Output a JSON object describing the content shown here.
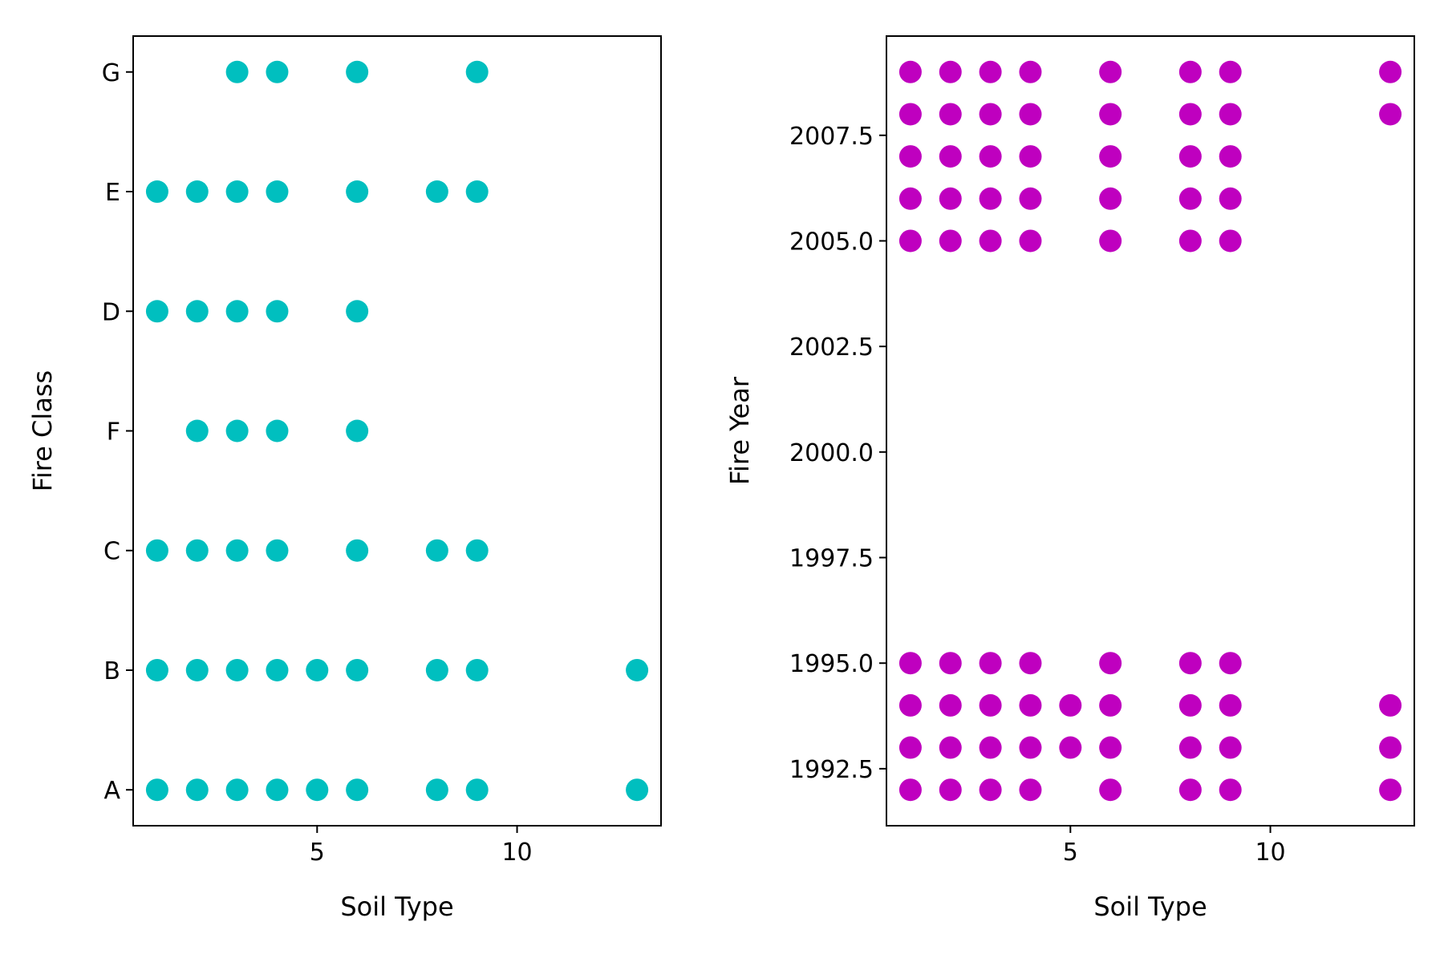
{
  "chart_data": [
    {
      "type": "scatter",
      "title": "",
      "xlabel": "Soil Type",
      "ylabel": "Fire Class",
      "xlim": [
        0.4,
        13.6
      ],
      "y_categories": [
        "A",
        "B",
        "C",
        "F",
        "D",
        "E",
        "G"
      ],
      "xticks": [
        5,
        10
      ],
      "grid": false,
      "color": "#00bfbf",
      "points": [
        {
          "x": 1,
          "y": "A"
        },
        {
          "x": 2,
          "y": "A"
        },
        {
          "x": 3,
          "y": "A"
        },
        {
          "x": 4,
          "y": "A"
        },
        {
          "x": 5,
          "y": "A"
        },
        {
          "x": 6,
          "y": "A"
        },
        {
          "x": 8,
          "y": "A"
        },
        {
          "x": 9,
          "y": "A"
        },
        {
          "x": 13,
          "y": "A"
        },
        {
          "x": 1,
          "y": "B"
        },
        {
          "x": 2,
          "y": "B"
        },
        {
          "x": 3,
          "y": "B"
        },
        {
          "x": 4,
          "y": "B"
        },
        {
          "x": 5,
          "y": "B"
        },
        {
          "x": 6,
          "y": "B"
        },
        {
          "x": 8,
          "y": "B"
        },
        {
          "x": 9,
          "y": "B"
        },
        {
          "x": 13,
          "y": "B"
        },
        {
          "x": 1,
          "y": "C"
        },
        {
          "x": 2,
          "y": "C"
        },
        {
          "x": 3,
          "y": "C"
        },
        {
          "x": 4,
          "y": "C"
        },
        {
          "x": 6,
          "y": "C"
        },
        {
          "x": 8,
          "y": "C"
        },
        {
          "x": 9,
          "y": "C"
        },
        {
          "x": 2,
          "y": "F"
        },
        {
          "x": 3,
          "y": "F"
        },
        {
          "x": 4,
          "y": "F"
        },
        {
          "x": 6,
          "y": "F"
        },
        {
          "x": 1,
          "y": "D"
        },
        {
          "x": 2,
          "y": "D"
        },
        {
          "x": 3,
          "y": "D"
        },
        {
          "x": 4,
          "y": "D"
        },
        {
          "x": 6,
          "y": "D"
        },
        {
          "x": 1,
          "y": "E"
        },
        {
          "x": 2,
          "y": "E"
        },
        {
          "x": 3,
          "y": "E"
        },
        {
          "x": 4,
          "y": "E"
        },
        {
          "x": 6,
          "y": "E"
        },
        {
          "x": 8,
          "y": "E"
        },
        {
          "x": 9,
          "y": "E"
        },
        {
          "x": 3,
          "y": "G"
        },
        {
          "x": 4,
          "y": "G"
        },
        {
          "x": 6,
          "y": "G"
        },
        {
          "x": 9,
          "y": "G"
        }
      ]
    },
    {
      "type": "scatter",
      "title": "",
      "xlabel": "Soil Type",
      "ylabel": "Fire Year",
      "xlim": [
        0.4,
        13.6
      ],
      "ylim": [
        1991.15,
        2009.85
      ],
      "xticks": [
        5,
        10
      ],
      "yticks": [
        1992.5,
        1995.0,
        1997.5,
        2000.0,
        2002.5,
        2005.0,
        2007.5
      ],
      "ytick_labels": [
        "1992.5",
        "1995.0",
        "1997.5",
        "2000.0",
        "2002.5",
        "2005.0",
        "2007.5"
      ],
      "grid": false,
      "color": "#bf00bf",
      "points": [
        {
          "x": 1,
          "y": 1992
        },
        {
          "x": 2,
          "y": 1992
        },
        {
          "x": 3,
          "y": 1992
        },
        {
          "x": 4,
          "y": 1992
        },
        {
          "x": 6,
          "y": 1992
        },
        {
          "x": 8,
          "y": 1992
        },
        {
          "x": 9,
          "y": 1992
        },
        {
          "x": 13,
          "y": 1992
        },
        {
          "x": 1,
          "y": 1993
        },
        {
          "x": 2,
          "y": 1993
        },
        {
          "x": 3,
          "y": 1993
        },
        {
          "x": 4,
          "y": 1993
        },
        {
          "x": 5,
          "y": 1993
        },
        {
          "x": 6,
          "y": 1993
        },
        {
          "x": 8,
          "y": 1993
        },
        {
          "x": 9,
          "y": 1993
        },
        {
          "x": 13,
          "y": 1993
        },
        {
          "x": 1,
          "y": 1994
        },
        {
          "x": 2,
          "y": 1994
        },
        {
          "x": 3,
          "y": 1994
        },
        {
          "x": 4,
          "y": 1994
        },
        {
          "x": 5,
          "y": 1994
        },
        {
          "x": 6,
          "y": 1994
        },
        {
          "x": 8,
          "y": 1994
        },
        {
          "x": 9,
          "y": 1994
        },
        {
          "x": 13,
          "y": 1994
        },
        {
          "x": 1,
          "y": 1995
        },
        {
          "x": 2,
          "y": 1995
        },
        {
          "x": 3,
          "y": 1995
        },
        {
          "x": 4,
          "y": 1995
        },
        {
          "x": 6,
          "y": 1995
        },
        {
          "x": 8,
          "y": 1995
        },
        {
          "x": 9,
          "y": 1995
        },
        {
          "x": 1,
          "y": 2005
        },
        {
          "x": 2,
          "y": 2005
        },
        {
          "x": 3,
          "y": 2005
        },
        {
          "x": 4,
          "y": 2005
        },
        {
          "x": 6,
          "y": 2005
        },
        {
          "x": 8,
          "y": 2005
        },
        {
          "x": 9,
          "y": 2005
        },
        {
          "x": 1,
          "y": 2006
        },
        {
          "x": 2,
          "y": 2006
        },
        {
          "x": 3,
          "y": 2006
        },
        {
          "x": 4,
          "y": 2006
        },
        {
          "x": 6,
          "y": 2006
        },
        {
          "x": 8,
          "y": 2006
        },
        {
          "x": 9,
          "y": 2006
        },
        {
          "x": 1,
          "y": 2007
        },
        {
          "x": 2,
          "y": 2007
        },
        {
          "x": 3,
          "y": 2007
        },
        {
          "x": 4,
          "y": 2007
        },
        {
          "x": 6,
          "y": 2007
        },
        {
          "x": 8,
          "y": 2007
        },
        {
          "x": 9,
          "y": 2007
        },
        {
          "x": 1,
          "y": 2008
        },
        {
          "x": 2,
          "y": 2008
        },
        {
          "x": 3,
          "y": 2008
        },
        {
          "x": 4,
          "y": 2008
        },
        {
          "x": 6,
          "y": 2008
        },
        {
          "x": 8,
          "y": 2008
        },
        {
          "x": 9,
          "y": 2008
        },
        {
          "x": 13,
          "y": 2008
        },
        {
          "x": 1,
          "y": 2009
        },
        {
          "x": 2,
          "y": 2009
        },
        {
          "x": 3,
          "y": 2009
        },
        {
          "x": 4,
          "y": 2009
        },
        {
          "x": 6,
          "y": 2009
        },
        {
          "x": 8,
          "y": 2009
        },
        {
          "x": 9,
          "y": 2009
        },
        {
          "x": 13,
          "y": 2009
        }
      ]
    }
  ]
}
